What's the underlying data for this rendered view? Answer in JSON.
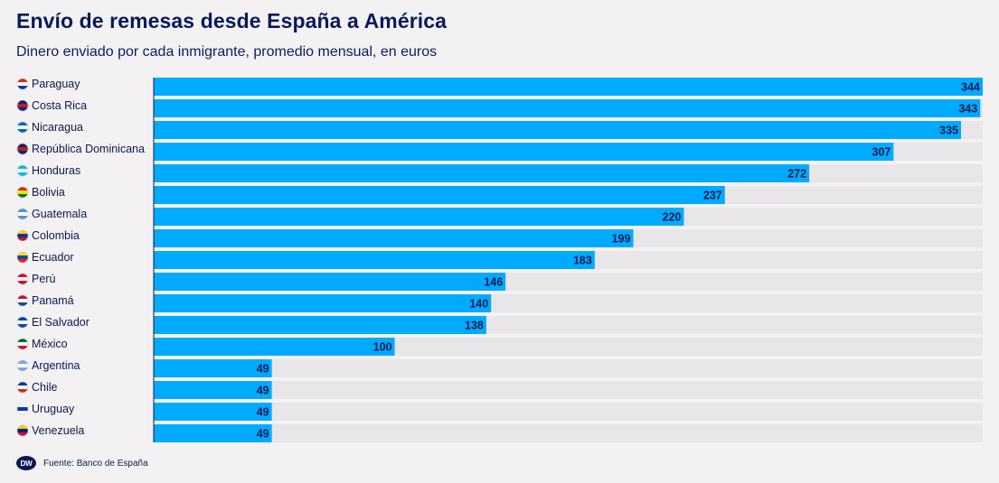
{
  "header": {
    "title": "Envío de remesas desde España a América",
    "subtitle": "Dinero enviado por cada inmigrante, promedio mensual, en euros"
  },
  "footer": {
    "logo_text": "DW",
    "source": "Fuente: Banco de España"
  },
  "colors": {
    "bar": "#00aaff",
    "track": "#e8e6e8",
    "text": "#0a1a4f",
    "background": "#f4f1f2"
  },
  "chart_data": {
    "type": "bar",
    "orientation": "horizontal",
    "title": "Envío de remesas desde España a América",
    "subtitle": "Dinero enviado por cada inmigrante, promedio mensual, en euros",
    "categories": [
      "Paraguay",
      "Costa Rica",
      "Nicaragua",
      "República Dominicana",
      "Honduras",
      "Bolivia",
      "Guatemala",
      "Colombia",
      "Ecuador",
      "Perú",
      "Panamá",
      "El Salvador",
      "México",
      "Argentina",
      "Chile",
      "Uruguay",
      "Venezuela"
    ],
    "values": [
      344,
      343,
      335,
      307,
      272,
      237,
      220,
      199,
      183,
      146,
      140,
      138,
      100,
      49,
      49,
      49,
      49
    ],
    "xlim": [
      0,
      344
    ],
    "grid": false,
    "legend": "none"
  },
  "flags": {
    "Paraguay": [
      "#d52b1e",
      "#ffffff",
      "#0038a8"
    ],
    "Costa Rica": [
      "#002b7f",
      "#ce1126",
      "#002b7f"
    ],
    "Nicaragua": [
      "#0067c6",
      "#ffffff",
      "#0067c6"
    ],
    "República Dominicana": [
      "#002d62",
      "#ce1126",
      "#002d62"
    ],
    "Honduras": [
      "#00bce4",
      "#ffffff",
      "#00bce4"
    ],
    "Bolivia": [
      "#d52b1e",
      "#f9e300",
      "#007934"
    ],
    "Guatemala": [
      "#4997d0",
      "#ffffff",
      "#4997d0"
    ],
    "Colombia": [
      "#fcd116",
      "#003893",
      "#ce1126"
    ],
    "Ecuador": [
      "#ffdd00",
      "#034ea2",
      "#ed1c24"
    ],
    "Perú": [
      "#d91023",
      "#ffffff",
      "#d91023"
    ],
    "Panamá": [
      "#d21034",
      "#ffffff",
      "#005293"
    ],
    "El Salvador": [
      "#0047ab",
      "#ffffff",
      "#0047ab"
    ],
    "México": [
      "#006847",
      "#ffffff",
      "#ce1126"
    ],
    "Argentina": [
      "#74acdf",
      "#ffffff",
      "#74acdf"
    ],
    "Chile": [
      "#0039a6",
      "#ffffff",
      "#d52b1e"
    ],
    "Uruguay": [
      "#ffffff",
      "#0038a8",
      "#ffffff"
    ],
    "Venezuela": [
      "#ffcc00",
      "#00247d",
      "#cf142b"
    ]
  }
}
